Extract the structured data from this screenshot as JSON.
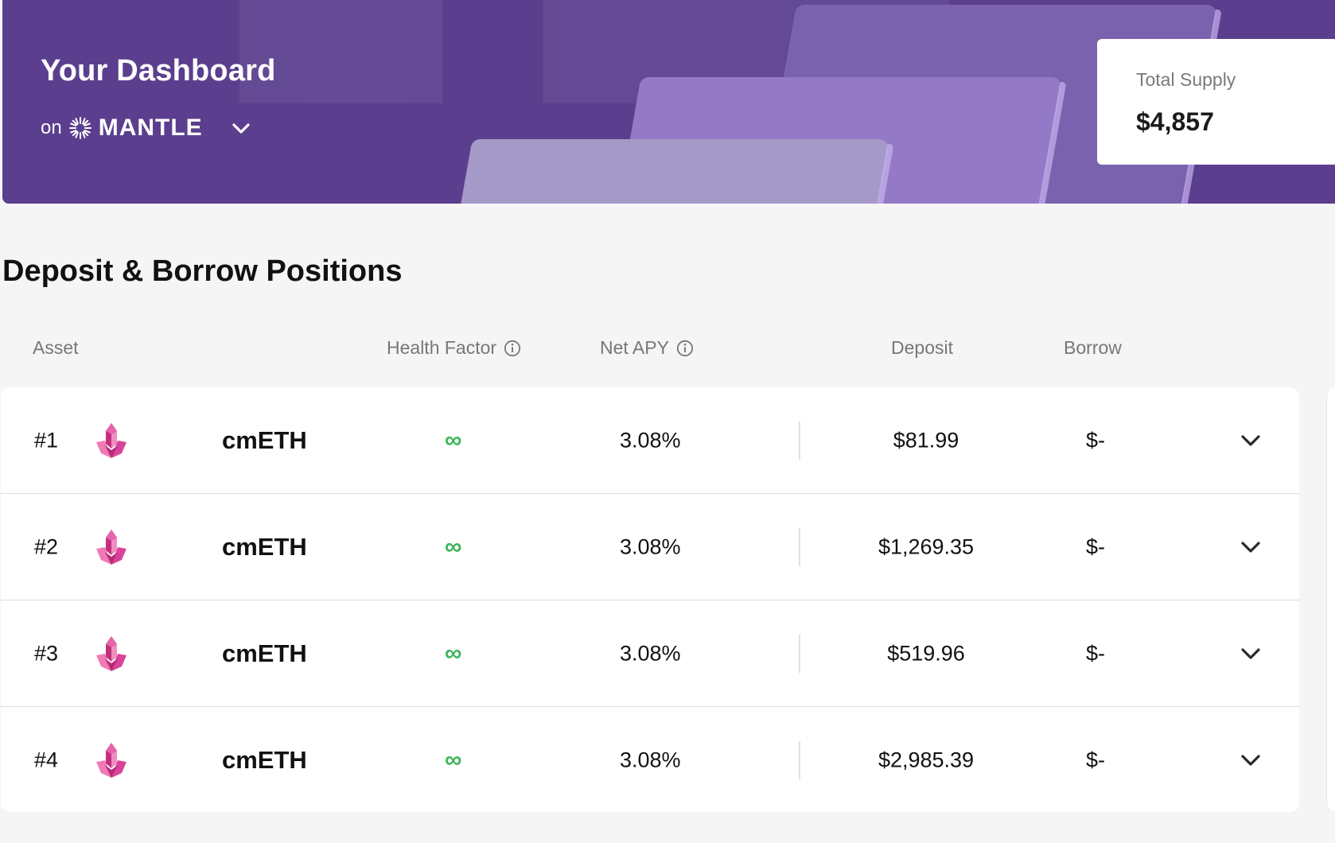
{
  "banner": {
    "title": "Your Dashboard",
    "network_prefix": "on",
    "network_name": "MANTLE",
    "network_icon": "mantle-logo-icon",
    "colors": {
      "background": "#5b3f8e",
      "slab_dark": "#7b62ae",
      "slab_mid": "#9479c7",
      "slab_light": "#a599c8"
    }
  },
  "summary": {
    "total_supply_label": "Total Supply",
    "total_supply_value": "$4,857"
  },
  "positions": {
    "title": "Deposit & Borrow Positions",
    "columns": {
      "asset": "Asset",
      "health_factor": "Health Factor",
      "net_apy": "Net APY",
      "deposit": "Deposit",
      "borrow": "Borrow"
    },
    "health_color": "#3cb55a",
    "rows": [
      {
        "rank": "#1",
        "asset": "cmETH",
        "health_factor": "∞",
        "net_apy": "3.08%",
        "deposit": "$81.99",
        "borrow": "$-"
      },
      {
        "rank": "#2",
        "asset": "cmETH",
        "health_factor": "∞",
        "net_apy": "3.08%",
        "deposit": "$1,269.35",
        "borrow": "$-"
      },
      {
        "rank": "#3",
        "asset": "cmETH",
        "health_factor": "∞",
        "net_apy": "3.08%",
        "deposit": "$519.96",
        "borrow": "$-"
      },
      {
        "rank": "#4",
        "asset": "cmETH",
        "health_factor": "∞",
        "net_apy": "3.08%",
        "deposit": "$2,985.39",
        "borrow": "$-"
      }
    ]
  }
}
